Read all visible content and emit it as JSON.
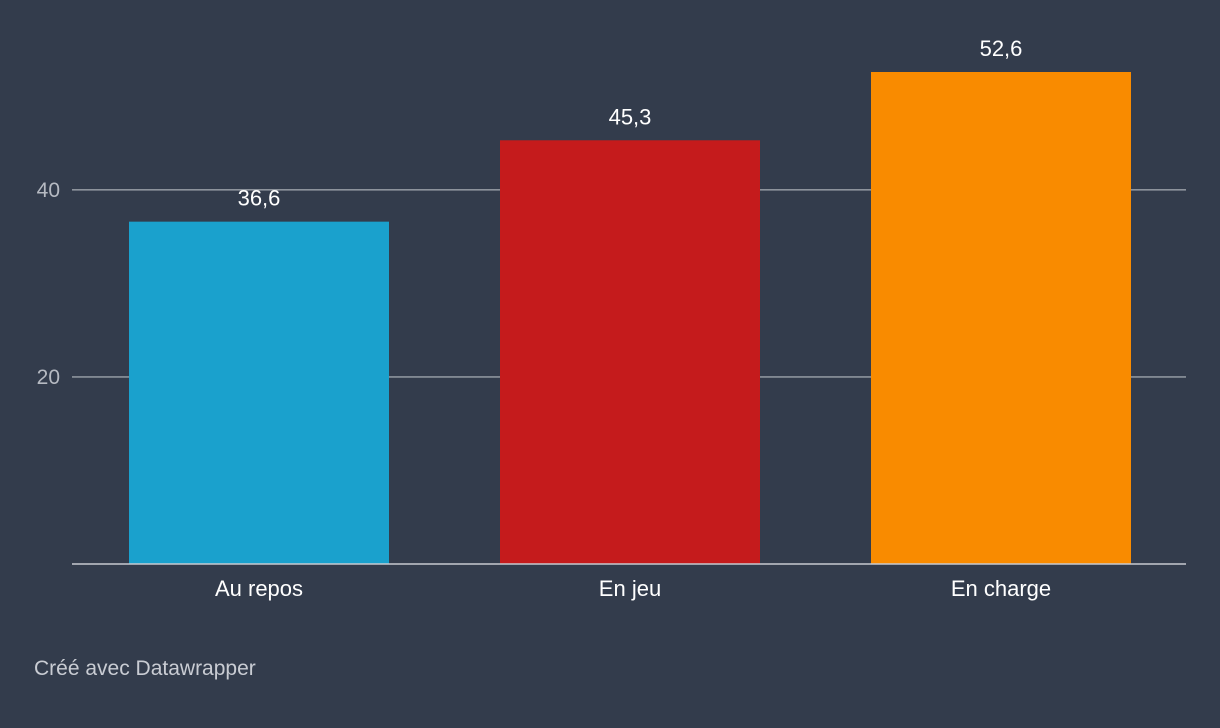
{
  "chart_data": {
    "type": "bar",
    "categories": [
      "Au repos",
      "En jeu",
      "En charge"
    ],
    "values": [
      36.6,
      45.3,
      52.6
    ],
    "value_labels": [
      "36,6",
      "45,3",
      "52,6"
    ],
    "colors": [
      "#1aa1cd",
      "#c51b1c",
      "#f98b00"
    ],
    "title": "",
    "xlabel": "",
    "ylabel": "",
    "ylim": [
      0,
      52.6
    ],
    "y_ticks": [
      {
        "value": 20,
        "label": "20"
      },
      {
        "value": 40,
        "label": "40"
      }
    ],
    "grid": true,
    "grid_color": "#8d939c",
    "baseline_color": "#c7cad0",
    "tick_label_color": "#b6bac2",
    "label_color": "#ffffff",
    "legend": "none"
  },
  "credit": "Créé avec Datawrapper",
  "background_color": "#333c4c"
}
